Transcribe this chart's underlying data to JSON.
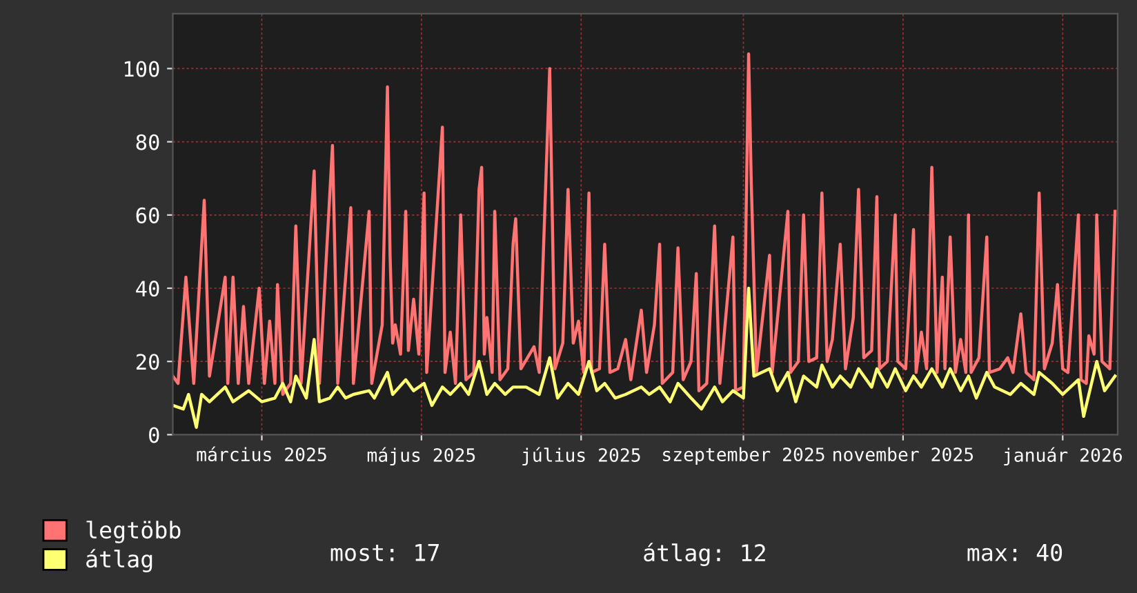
{
  "chart_data": {
    "type": "line",
    "xlim": [
      "2025-01-26",
      "2026-01-22"
    ],
    "xticks": [
      {
        "value": "2025-03-01",
        "label": "március 2025"
      },
      {
        "value": "2025-05-01",
        "label": "május 2025"
      },
      {
        "value": "2025-07-01",
        "label": "július 2025"
      },
      {
        "value": "2025-09-01",
        "label": "szeptember 2025"
      },
      {
        "value": "2025-11-01",
        "label": "november 2025"
      },
      {
        "value": "2026-01-01",
        "label": "január 2026"
      }
    ],
    "ylim": [
      0,
      115
    ],
    "yticks": [
      0,
      20,
      40,
      60,
      80,
      100
    ],
    "grid": true,
    "legend": "bottom left",
    "annotations": [
      "most: 17",
      "átlag: 12",
      "max: 40"
    ],
    "series": [
      {
        "name": "legtöbb",
        "color": "#ff7373",
        "x": [
          "2025-01-26",
          "2025-01-28",
          "2025-01-31",
          "2025-02-03",
          "2025-02-07",
          "2025-02-09",
          "2025-02-15",
          "2025-02-16",
          "2025-02-18",
          "2025-02-20",
          "2025-02-22",
          "2025-02-24",
          "2025-02-28",
          "2025-03-02",
          "2025-03-04",
          "2025-03-06",
          "2025-03-07",
          "2025-03-09",
          "2025-03-12",
          "2025-03-14",
          "2025-03-16",
          "2025-03-21",
          "2025-03-23",
          "2025-03-28",
          "2025-03-30",
          "2025-04-04",
          "2025-04-05",
          "2025-04-11",
          "2025-04-12",
          "2025-04-16",
          "2025-04-18",
          "2025-04-19",
          "2025-04-20",
          "2025-04-21",
          "2025-04-23",
          "2025-04-25",
          "2025-04-26",
          "2025-04-28",
          "2025-04-30",
          "2025-05-02",
          "2025-05-03",
          "2025-05-09",
          "2025-05-10",
          "2025-05-12",
          "2025-05-14",
          "2025-05-16",
          "2025-05-18",
          "2025-05-21",
          "2025-05-23",
          "2025-05-24",
          "2025-05-25",
          "2025-05-26",
          "2025-05-28",
          "2025-05-29",
          "2025-05-31",
          "2025-06-03",
          "2025-06-05",
          "2025-06-06",
          "2025-06-08",
          "2025-06-13",
          "2025-06-15",
          "2025-06-19",
          "2025-06-21",
          "2025-06-24",
          "2025-06-26",
          "2025-06-28",
          "2025-06-30",
          "2025-07-02",
          "2025-07-04",
          "2025-07-05",
          "2025-07-08",
          "2025-07-10",
          "2025-07-12",
          "2025-07-15",
          "2025-07-18",
          "2025-07-20",
          "2025-07-24",
          "2025-07-26",
          "2025-07-29",
          "2025-07-31",
          "2025-08-01",
          "2025-08-05",
          "2025-08-07",
          "2025-08-09",
          "2025-08-12",
          "2025-08-14",
          "2025-08-15",
          "2025-08-18",
          "2025-08-21",
          "2025-08-23",
          "2025-08-28",
          "2025-08-29",
          "2025-09-01",
          "2025-09-03",
          "2025-09-04",
          "2025-09-06",
          "2025-09-11",
          "2025-09-12",
          "2025-09-18",
          "2025-09-19",
          "2025-09-22",
          "2025-09-24",
          "2025-09-26",
          "2025-09-29",
          "2025-10-01",
          "2025-10-03",
          "2025-10-05",
          "2025-10-08",
          "2025-10-10",
          "2025-10-13",
          "2025-10-15",
          "2025-10-17",
          "2025-10-20",
          "2025-10-22",
          "2025-10-23",
          "2025-10-26",
          "2025-10-29",
          "2025-10-30",
          "2025-11-02",
          "2025-11-05",
          "2025-11-06",
          "2025-11-08",
          "2025-11-10",
          "2025-11-12",
          "2025-11-14",
          "2025-11-16",
          "2025-11-17",
          "2025-11-19",
          "2025-11-21",
          "2025-11-23",
          "2025-11-25",
          "2025-11-26",
          "2025-11-27",
          "2025-11-30",
          "2025-12-03",
          "2025-12-04",
          "2025-12-08",
          "2025-12-11",
          "2025-12-13",
          "2025-12-16",
          "2025-12-18",
          "2025-12-21",
          "2025-12-23",
          "2025-12-25",
          "2025-12-28",
          "2025-12-30",
          "2026-01-01",
          "2026-01-03",
          "2026-01-07",
          "2026-01-08",
          "2026-01-10",
          "2026-01-11",
          "2026-01-13",
          "2026-01-14",
          "2026-01-16",
          "2026-01-19",
          "2026-01-21"
        ],
        "values": [
          16,
          14,
          43,
          14,
          64,
          16,
          43,
          14,
          43,
          14,
          35,
          14,
          40,
          14,
          31,
          14,
          41,
          11,
          14,
          57,
          14,
          72,
          14,
          79,
          14,
          62,
          14,
          61,
          14,
          30,
          95,
          49,
          25,
          30,
          22,
          61,
          23,
          37,
          22,
          66,
          17,
          84,
          17,
          28,
          14,
          60,
          15,
          17,
          67,
          73,
          22,
          32,
          17,
          61,
          15,
          18,
          52,
          59,
          18,
          24,
          17,
          100,
          18,
          25,
          67,
          25,
          31,
          17,
          66,
          17,
          18,
          52,
          17,
          18,
          26,
          15,
          34,
          17,
          30,
          52,
          14,
          17,
          51,
          15,
          20,
          44,
          12,
          14,
          57,
          14,
          54,
          12,
          13,
          104,
          69,
          17,
          49,
          17,
          61,
          17,
          20,
          60,
          20,
          21,
          66,
          20,
          26,
          52,
          18,
          32,
          67,
          21,
          23,
          65,
          18,
          20,
          60,
          20,
          18,
          56,
          17,
          28,
          18,
          73,
          17,
          43,
          18,
          54,
          17,
          26,
          17,
          60,
          17,
          21,
          54,
          17,
          18,
          21,
          17,
          33,
          17,
          15,
          66,
          18,
          25,
          41,
          18,
          17,
          60,
          15,
          14,
          27,
          22,
          60,
          20,
          18,
          61
        ]
      },
      {
        "name": "átlag",
        "color": "#ffff73",
        "x": [
          "2025-01-26",
          "2025-01-30",
          "2025-02-01",
          "2025-02-04",
          "2025-02-06",
          "2025-02-09",
          "2025-02-15",
          "2025-02-18",
          "2025-02-24",
          "2025-03-01",
          "2025-03-06",
          "2025-03-09",
          "2025-03-12",
          "2025-03-14",
          "2025-03-18",
          "2025-03-21",
          "2025-03-23",
          "2025-03-27",
          "2025-03-30",
          "2025-04-02",
          "2025-04-05",
          "2025-04-11",
          "2025-04-13",
          "2025-04-18",
          "2025-04-20",
          "2025-04-25",
          "2025-04-28",
          "2025-05-02",
          "2025-05-05",
          "2025-05-09",
          "2025-05-12",
          "2025-05-16",
          "2025-05-19",
          "2025-05-23",
          "2025-05-26",
          "2025-05-29",
          "2025-06-02",
          "2025-06-05",
          "2025-06-10",
          "2025-06-15",
          "2025-06-19",
          "2025-06-22",
          "2025-06-26",
          "2025-06-30",
          "2025-07-04",
          "2025-07-07",
          "2025-07-10",
          "2025-07-14",
          "2025-07-18",
          "2025-07-24",
          "2025-07-27",
          "2025-07-31",
          "2025-08-04",
          "2025-08-07",
          "2025-08-12",
          "2025-08-16",
          "2025-08-21",
          "2025-08-24",
          "2025-08-28",
          "2025-09-01",
          "2025-09-03",
          "2025-09-05",
          "2025-09-11",
          "2025-09-14",
          "2025-09-18",
          "2025-09-21",
          "2025-09-24",
          "2025-09-29",
          "2025-10-01",
          "2025-10-05",
          "2025-10-08",
          "2025-10-12",
          "2025-10-15",
          "2025-10-20",
          "2025-10-22",
          "2025-10-26",
          "2025-10-29",
          "2025-11-02",
          "2025-11-05",
          "2025-11-08",
          "2025-11-12",
          "2025-11-16",
          "2025-11-19",
          "2025-11-23",
          "2025-11-26",
          "2025-11-29",
          "2025-12-03",
          "2025-12-06",
          "2025-12-12",
          "2025-12-16",
          "2025-12-21",
          "2025-12-23",
          "2025-12-28",
          "2026-01-01",
          "2026-01-07",
          "2026-01-09",
          "2026-01-14",
          "2026-01-17",
          "2026-01-21"
        ],
        "values": [
          8,
          7,
          11,
          2,
          11,
          9,
          13,
          9,
          12,
          9,
          10,
          14,
          9,
          16,
          10,
          26,
          9,
          10,
          13,
          10,
          11,
          12,
          10,
          17,
          11,
          15,
          12,
          14,
          8,
          13,
          11,
          14,
          11,
          20,
          11,
          14,
          11,
          13,
          13,
          11,
          21,
          10,
          14,
          11,
          20,
          12,
          14,
          10,
          11,
          13,
          11,
          13,
          9,
          14,
          10,
          7,
          13,
          9,
          12,
          10,
          40,
          16,
          18,
          12,
          17,
          9,
          16,
          13,
          19,
          13,
          16,
          13,
          18,
          13,
          18,
          13,
          18,
          12,
          16,
          13,
          18,
          13,
          18,
          12,
          16,
          10,
          17,
          13,
          11,
          14,
          11,
          17,
          14,
          11,
          15,
          5,
          20,
          12,
          16
        ]
      }
    ]
  }
}
